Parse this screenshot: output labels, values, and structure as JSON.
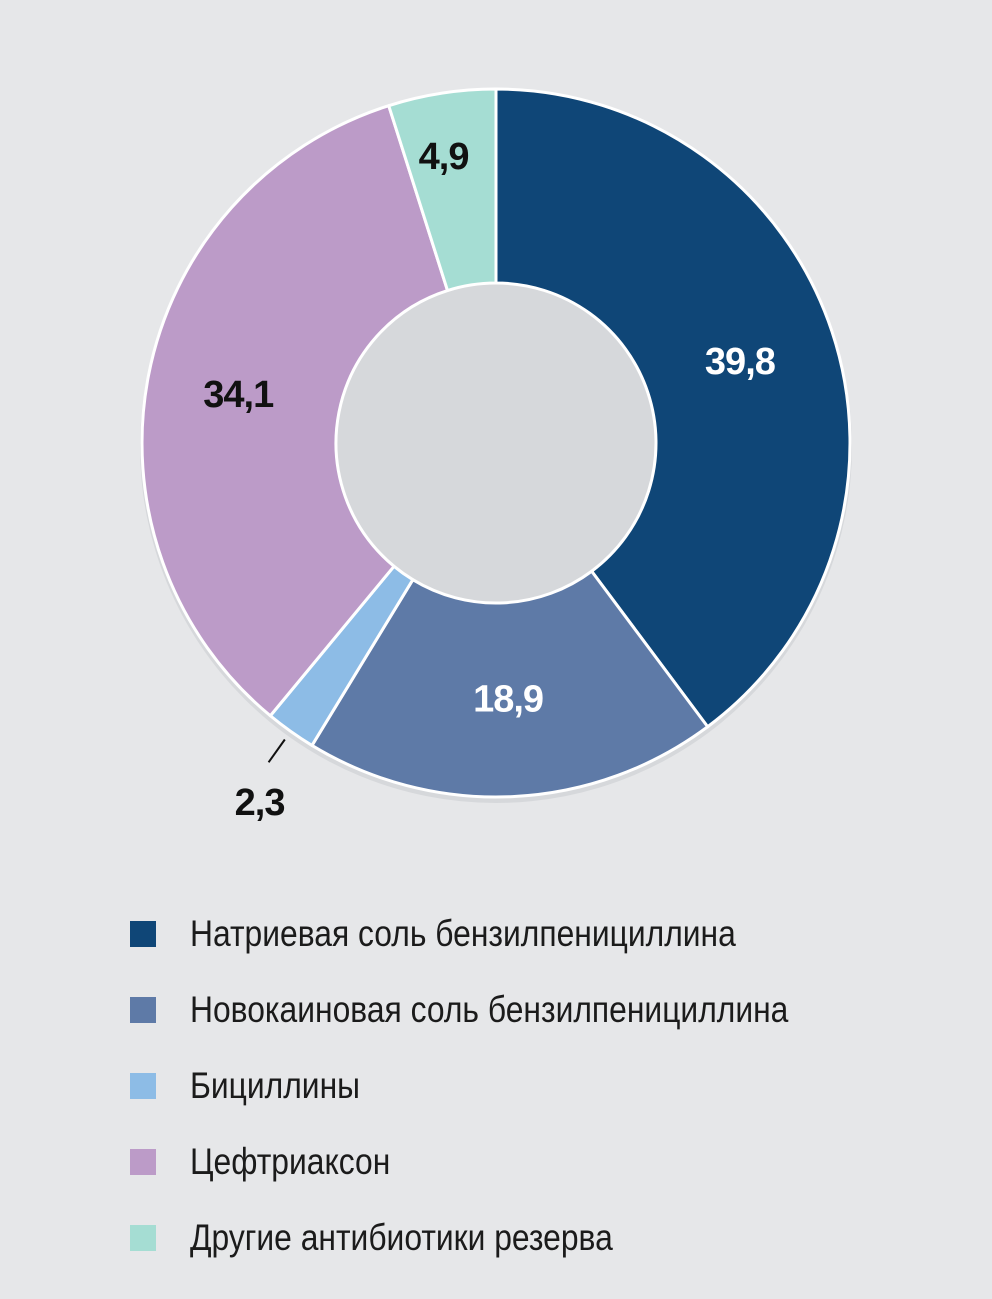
{
  "chart_data": {
    "type": "pie",
    "variant": "donut",
    "title": "",
    "slices": [
      {
        "name": "Натриевая соль бензилпенициллина",
        "value": 39.8,
        "label": "39,8",
        "color": "#0f4677",
        "label_color": "#ffffff"
      },
      {
        "name": "Новокаиновая соль бензилпенициллина",
        "value": 18.9,
        "label": "18,9",
        "color": "#5e7aa7",
        "label_color": "#ffffff"
      },
      {
        "name": "Бициллины",
        "value": 2.3,
        "label": "2,3",
        "color": "#8dbce6",
        "label_color": "#111111"
      },
      {
        "name": "Цефтриаксон",
        "value": 34.1,
        "label": "34,1",
        "color": "#bc9bc8",
        "label_color": "#111111"
      },
      {
        "name": "Другие антибиотики резерва",
        "value": 4.9,
        "label": "4,9",
        "color": "#a5ddd3",
        "label_color": "#111111"
      }
    ],
    "legend_position": "bottom",
    "start_angle": "12 o'clock",
    "direction": "clockwise"
  }
}
